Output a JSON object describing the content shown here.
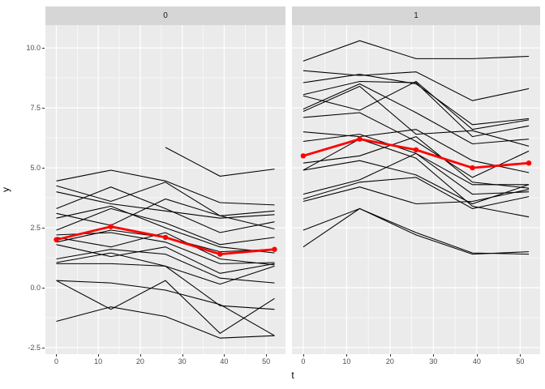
{
  "figure": {
    "background": "#ffffff",
    "panel_background": "#ebebeb",
    "strip_background": "#d6d6d6",
    "grid_color": "#ffffff",
    "trajectory_color": "#000000",
    "mean_line_color": "#ff0000",
    "tick_label_color": "#4d4d4d"
  },
  "axes": {
    "x_title": "t",
    "y_title": "y",
    "x_tick_labels": [
      "0",
      "10",
      "20",
      "30",
      "40",
      "50"
    ],
    "x_tick_values": [
      0,
      10,
      20,
      30,
      40,
      50
    ],
    "x_minor_ticks": [
      5,
      15,
      25,
      35,
      45
    ],
    "y_tick_labels": [
      "10.0",
      "7.5",
      "5.0",
      "2.5",
      "0.0",
      "-2.5"
    ],
    "y_tick_values": [
      10.0,
      7.5,
      5.0,
      2.5,
      0.0,
      -2.5
    ],
    "y_minor_ticks": [
      8.75,
      6.25,
      3.75,
      1.25,
      -1.25
    ],
    "xlim": [
      -2.6,
      54.6
    ],
    "ylim": [
      -2.77,
      10.95
    ],
    "grid": "on",
    "legend": "none"
  },
  "chart_data": {
    "type": "line",
    "description": "Faceted spaghetti plot of individual trajectories y over t with red mean profile per facet",
    "x": [
      0,
      13,
      26,
      39,
      52
    ],
    "facets": [
      {
        "label": "0",
        "series": [
          {
            "name": "traj-1",
            "values": [
              4.45,
              4.9,
              4.45,
              3.55,
              3.45
            ]
          },
          {
            "name": "traj-2",
            "values": [
              4.25,
              3.6,
              4.4,
              3.0,
              3.2
            ]
          },
          {
            "name": "traj-3",
            "values": [
              4.0,
              3.5,
              3.2,
              2.9,
              3.05
            ]
          },
          {
            "name": "traj-4",
            "values": [
              3.3,
              4.2,
              3.3,
              2.3,
              2.75
            ]
          },
          {
            "name": "traj-5",
            "values": [
              3.1,
              2.6,
              3.7,
              3.0,
              2.45
            ]
          },
          {
            "name": "traj-6",
            "values": [
              2.9,
              3.4,
              2.5,
              1.7,
              1.45
            ]
          },
          {
            "name": "traj-7",
            "values": [
              2.4,
              3.3,
              2.7,
              1.8,
              2.1
            ]
          },
          {
            "name": "traj-8",
            "values": [
              2.2,
              2.3,
              1.9,
              1.0,
              1.05
            ]
          },
          {
            "name": "traj-9",
            "values": [
              2.1,
              1.7,
              2.3,
              1.2,
              0.95
            ]
          },
          {
            "name": "traj-10",
            "values": [
              1.9,
              2.4,
              2.1,
              1.5,
              1.6
            ]
          },
          {
            "name": "traj-11",
            "values": [
              1.8,
              1.3,
              1.7,
              0.6,
              1.0
            ]
          },
          {
            "name": "traj-12",
            "values": [
              1.2,
              1.6,
              1.4,
              0.4,
              0.2
            ]
          },
          {
            "name": "traj-13",
            "values": [
              1.0,
              1.0,
              0.9,
              0.15,
              0.9
            ]
          },
          {
            "name": "traj-14",
            "values": [
              0.3,
              0.2,
              -0.1,
              -0.7,
              -2.0
            ]
          },
          {
            "name": "traj-15",
            "values": [
              -1.4,
              -0.8,
              -1.2,
              -2.1,
              -2.0
            ]
          },
          {
            "name": "traj-16",
            "values": [
              0.3,
              -0.9,
              0.3,
              -1.9,
              -0.45
            ]
          },
          {
            "name": "traj-17",
            "values": [
              null,
              null,
              5.85,
              4.65,
              4.95
            ]
          },
          {
            "name": "traj-18",
            "values": [
              1.05,
              1.45,
              0.9,
              -0.75,
              -0.9
            ]
          }
        ],
        "mean": [
          2.0,
          2.55,
          2.1,
          1.4,
          1.6
        ]
      },
      {
        "label": "1",
        "series": [
          {
            "name": "traj-1",
            "values": [
              9.45,
              10.3,
              9.55,
              9.55,
              9.65
            ]
          },
          {
            "name": "traj-2",
            "values": [
              9.05,
              8.85,
              9.0,
              7.8,
              8.3
            ]
          },
          {
            "name": "traj-3",
            "values": [
              8.55,
              8.9,
              8.5,
              6.8,
              7.05
            ]
          },
          {
            "name": "traj-4",
            "values": [
              8.05,
              8.6,
              8.55,
              6.3,
              6.75
            ]
          },
          {
            "name": "traj-5",
            "values": [
              8.0,
              7.4,
              8.6,
              6.6,
              7.0
            ]
          },
          {
            "name": "traj-6",
            "values": [
              7.45,
              8.5,
              7.3,
              6.0,
              6.2
            ]
          },
          {
            "name": "traj-7",
            "values": [
              7.35,
              8.4,
              6.4,
              6.55,
              5.9
            ]
          },
          {
            "name": "traj-8",
            "values": [
              7.1,
              7.3,
              6.1,
              4.6,
              5.7
            ]
          },
          {
            "name": "traj-9",
            "values": [
              6.5,
              6.3,
              6.6,
              5.3,
              4.8
            ]
          },
          {
            "name": "traj-10",
            "values": [
              6.1,
              6.4,
              5.6,
              4.3,
              4.3
            ]
          },
          {
            "name": "traj-11",
            "values": [
              5.2,
              5.5,
              6.3,
              4.4,
              4.15
            ]
          },
          {
            "name": "traj-12",
            "values": [
              4.9,
              5.3,
              4.7,
              3.5,
              4.3
            ]
          },
          {
            "name": "traj-13",
            "values": [
              3.9,
              4.5,
              5.6,
              3.9,
              4.0
            ]
          },
          {
            "name": "traj-14",
            "values": [
              3.7,
              4.4,
              4.6,
              3.3,
              3.8
            ]
          },
          {
            "name": "traj-15",
            "values": [
              3.6,
              4.2,
              3.5,
              3.6,
              4.1
            ]
          },
          {
            "name": "traj-16",
            "values": [
              2.4,
              3.3,
              2.3,
              1.45,
              1.4
            ]
          },
          {
            "name": "traj-17",
            "values": [
              1.7,
              3.3,
              2.2,
              1.4,
              1.5
            ]
          },
          {
            "name": "traj-18",
            "values": [
              4.9,
              6.2,
              5.4,
              3.4,
              2.95
            ]
          }
        ],
        "mean": [
          5.5,
          6.2,
          5.75,
          5.0,
          5.2
        ]
      }
    ]
  }
}
